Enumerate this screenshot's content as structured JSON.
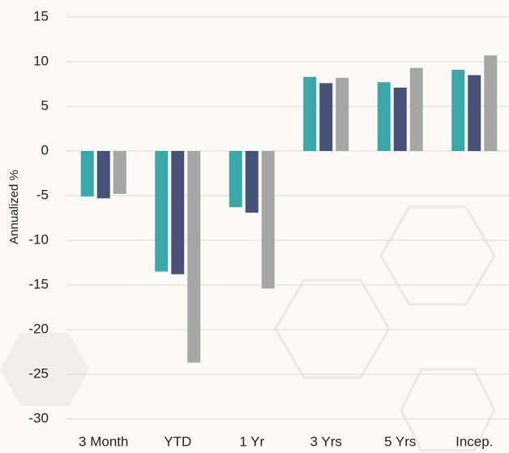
{
  "chart_data": {
    "type": "bar",
    "y_label": "Annualized %",
    "categories": [
      "3 Month",
      "YTD",
      "1 Yr",
      "3 Yrs",
      "5 Yrs",
      "Incep."
    ],
    "series": [
      {
        "color": "#3aa8a8",
        "values": [
          -5.1,
          -13.5,
          -6.3,
          8.3,
          7.7,
          9.1
        ]
      },
      {
        "color": "#475278",
        "values": [
          -5.3,
          -13.8,
          -6.9,
          7.6,
          7.1,
          8.5
        ]
      },
      {
        "color": "#a6a6a6",
        "values": [
          -4.8,
          -23.7,
          -15.4,
          8.2,
          9.3,
          10.7
        ]
      }
    ],
    "ylim": [
      -30,
      15
    ],
    "yticks": [
      -30,
      -25,
      -20,
      -15,
      -10,
      -5,
      0,
      5,
      10,
      15
    ],
    "grid": true
  }
}
